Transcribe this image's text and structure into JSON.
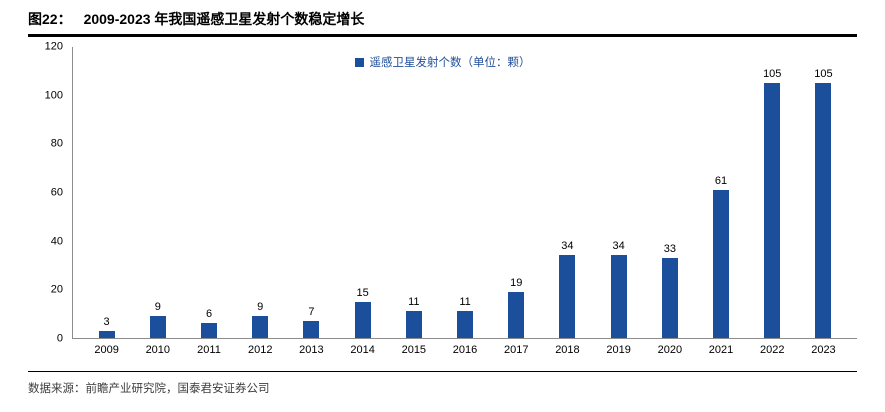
{
  "header": {
    "figure_label": "图22：",
    "title": "2009-2023 年我国遥感卫星发射个数稳定增长"
  },
  "chart_data": {
    "type": "bar",
    "title": "2009-2023 年我国遥感卫星发射个数稳定增长",
    "legend": "遥感卫星发射个数（单位：颗）",
    "legend_position": "top-center",
    "categories": [
      "2009",
      "2010",
      "2011",
      "2012",
      "2013",
      "2014",
      "2015",
      "2016",
      "2017",
      "2018",
      "2019",
      "2020",
      "2021",
      "2022",
      "2023"
    ],
    "values": [
      3,
      9,
      6,
      9,
      7,
      15,
      11,
      11,
      19,
      34,
      34,
      33,
      61,
      105,
      105
    ],
    "xlabel": "",
    "ylabel": "",
    "ylim": [
      0,
      120
    ],
    "yticks": [
      0,
      20,
      40,
      60,
      80,
      100,
      120
    ],
    "grid": false,
    "bar_color": "#1B4F9B"
  },
  "footer": {
    "source": "数据来源：前瞻产业研究院，国泰君安证券公司"
  }
}
